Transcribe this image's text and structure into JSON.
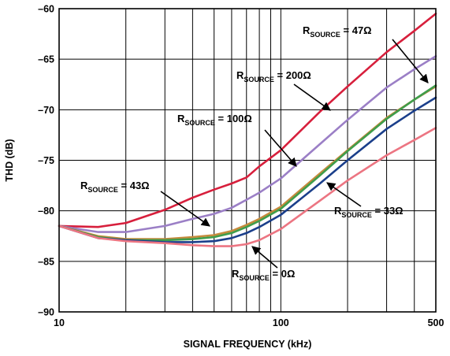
{
  "chart_data": {
    "type": "line",
    "title": "",
    "xlabel": "SIGNAL FREQUENCY (kHz)",
    "ylabel": "THD (dB)",
    "x_scale": "log",
    "xlim": [
      10,
      500
    ],
    "ylim": [
      -90,
      -60
    ],
    "x_tick_labels": [
      "10",
      "100",
      "500"
    ],
    "y_tick_labels": [
      "–60",
      "–65",
      "–70",
      "–75",
      "–80",
      "–85",
      "–90"
    ],
    "grid": true,
    "x": [
      10,
      15,
      20,
      30,
      40,
      50,
      60,
      70,
      80,
      100,
      150,
      200,
      300,
      400,
      500
    ],
    "series": [
      {
        "name": "RSOURCE = 47Ω",
        "color": "#d71f3c",
        "values": [
          -81.5,
          -81.6,
          -81.2,
          -79.9,
          -78.7,
          -77.9,
          -77.3,
          -76.7,
          -75.6,
          -74.0,
          -70.2,
          -67.7,
          -64.3,
          -62.2,
          -60.5
        ]
      },
      {
        "name": "RSOURCE = 200Ω",
        "color": "#9b7fc6",
        "values": [
          -81.5,
          -82.1,
          -82.1,
          -81.5,
          -80.8,
          -80.3,
          -79.7,
          -78.9,
          -78.2,
          -76.8,
          -73.4,
          -71.0,
          -67.8,
          -66.0,
          -64.7
        ]
      },
      {
        "name": "RSOURCE = 100Ω",
        "color": "#c68a3c",
        "values": [
          -81.5,
          -82.5,
          -82.8,
          -82.8,
          -82.6,
          -82.4,
          -82.0,
          -81.4,
          -80.8,
          -79.6,
          -76.3,
          -74.0,
          -70.8,
          -69.0,
          -67.7
        ]
      },
      {
        "name": "RSOURCE = 43Ω",
        "color": "#3f9d4b",
        "values": [
          -81.5,
          -82.6,
          -82.9,
          -82.9,
          -82.8,
          -82.6,
          -82.2,
          -81.6,
          -81.0,
          -79.8,
          -76.5,
          -74.1,
          -70.9,
          -69.0,
          -67.6
        ]
      },
      {
        "name": "RSOURCE = 33Ω",
        "color": "#1b3f8b",
        "values": [
          -81.5,
          -82.7,
          -82.9,
          -83.1,
          -83.1,
          -83.0,
          -82.7,
          -82.2,
          -81.6,
          -80.4,
          -77.3,
          -75.0,
          -71.9,
          -70.1,
          -68.8
        ]
      },
      {
        "name": "RSOURCE = 0Ω",
        "color": "#ec7582",
        "values": [
          -81.5,
          -82.7,
          -83.0,
          -83.2,
          -83.4,
          -83.5,
          -83.5,
          -83.3,
          -82.9,
          -81.8,
          -79.0,
          -77.0,
          -74.5,
          -73.0,
          -71.8
        ]
      }
    ],
    "annotations": [
      {
        "main": "R",
        "sub": "SOURCE",
        "tail": " = 47Ω"
      },
      {
        "main": "R",
        "sub": "SOURCE",
        "tail": " = 200Ω"
      },
      {
        "main": "R",
        "sub": "SOURCE",
        "tail": " = 100Ω"
      },
      {
        "main": "R",
        "sub": "SOURCE",
        "tail": " = 43Ω"
      },
      {
        "main": "R",
        "sub": "SOURCE",
        "tail": " = 33Ω"
      },
      {
        "main": "R",
        "sub": "SOURCE",
        "tail": " = 0Ω"
      }
    ]
  }
}
